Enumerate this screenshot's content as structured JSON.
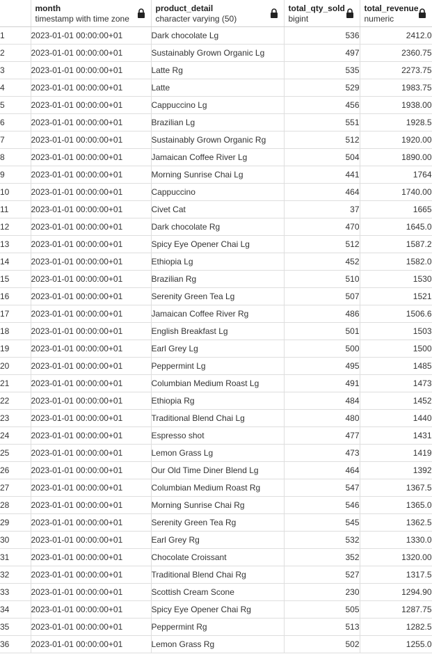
{
  "columns": [
    {
      "name": "",
      "type": ""
    },
    {
      "name": "month",
      "type": "timestamp with time zone"
    },
    {
      "name": "product_detail",
      "type": "character varying (50)"
    },
    {
      "name": "total_qty_sold",
      "type": "bigint"
    },
    {
      "name": "total_revenue",
      "type": "numeric"
    }
  ],
  "icons": {
    "column_lock": "lock-icon"
  },
  "rows": [
    {
      "n": "1",
      "month": "2023-01-01 00:00:00+01",
      "product": "Dark chocolate Lg",
      "qty": "536",
      "revenue": "2412.0"
    },
    {
      "n": "2",
      "month": "2023-01-01 00:00:00+01",
      "product": "Sustainably Grown Organic Lg",
      "qty": "497",
      "revenue": "2360.75"
    },
    {
      "n": "3",
      "month": "2023-01-01 00:00:00+01",
      "product": "Latte Rg",
      "qty": "535",
      "revenue": "2273.75"
    },
    {
      "n": "4",
      "month": "2023-01-01 00:00:00+01",
      "product": "Latte",
      "qty": "529",
      "revenue": "1983.75"
    },
    {
      "n": "5",
      "month": "2023-01-01 00:00:00+01",
      "product": "Cappuccino Lg",
      "qty": "456",
      "revenue": "1938.00"
    },
    {
      "n": "6",
      "month": "2023-01-01 00:00:00+01",
      "product": "Brazilian Lg",
      "qty": "551",
      "revenue": "1928.5"
    },
    {
      "n": "7",
      "month": "2023-01-01 00:00:00+01",
      "product": "Sustainably Grown Organic Rg",
      "qty": "512",
      "revenue": "1920.00"
    },
    {
      "n": "8",
      "month": "2023-01-01 00:00:00+01",
      "product": "Jamaican Coffee River Lg",
      "qty": "504",
      "revenue": "1890.00"
    },
    {
      "n": "9",
      "month": "2023-01-01 00:00:00+01",
      "product": "Morning Sunrise Chai Lg",
      "qty": "441",
      "revenue": "1764"
    },
    {
      "n": "10",
      "month": "2023-01-01 00:00:00+01",
      "product": "Cappuccino",
      "qty": "464",
      "revenue": "1740.00"
    },
    {
      "n": "11",
      "month": "2023-01-01 00:00:00+01",
      "product": "Civet Cat",
      "qty": "37",
      "revenue": "1665"
    },
    {
      "n": "12",
      "month": "2023-01-01 00:00:00+01",
      "product": "Dark chocolate Rg",
      "qty": "470",
      "revenue": "1645.0"
    },
    {
      "n": "13",
      "month": "2023-01-01 00:00:00+01",
      "product": "Spicy Eye Opener Chai Lg",
      "qty": "512",
      "revenue": "1587.2"
    },
    {
      "n": "14",
      "month": "2023-01-01 00:00:00+01",
      "product": "Ethiopia Lg",
      "qty": "452",
      "revenue": "1582.0"
    },
    {
      "n": "15",
      "month": "2023-01-01 00:00:00+01",
      "product": "Brazilian Rg",
      "qty": "510",
      "revenue": "1530"
    },
    {
      "n": "16",
      "month": "2023-01-01 00:00:00+01",
      "product": "Serenity Green Tea Lg",
      "qty": "507",
      "revenue": "1521"
    },
    {
      "n": "17",
      "month": "2023-01-01 00:00:00+01",
      "product": "Jamaican Coffee River Rg",
      "qty": "486",
      "revenue": "1506.6"
    },
    {
      "n": "18",
      "month": "2023-01-01 00:00:00+01",
      "product": "English Breakfast Lg",
      "qty": "501",
      "revenue": "1503"
    },
    {
      "n": "19",
      "month": "2023-01-01 00:00:00+01",
      "product": "Earl Grey Lg",
      "qty": "500",
      "revenue": "1500"
    },
    {
      "n": "20",
      "month": "2023-01-01 00:00:00+01",
      "product": "Peppermint Lg",
      "qty": "495",
      "revenue": "1485"
    },
    {
      "n": "21",
      "month": "2023-01-01 00:00:00+01",
      "product": "Columbian Medium Roast Lg",
      "qty": "491",
      "revenue": "1473"
    },
    {
      "n": "22",
      "month": "2023-01-01 00:00:00+01",
      "product": "Ethiopia Rg",
      "qty": "484",
      "revenue": "1452"
    },
    {
      "n": "23",
      "month": "2023-01-01 00:00:00+01",
      "product": "Traditional Blend Chai Lg",
      "qty": "480",
      "revenue": "1440"
    },
    {
      "n": "24",
      "month": "2023-01-01 00:00:00+01",
      "product": "Espresso shot",
      "qty": "477",
      "revenue": "1431"
    },
    {
      "n": "25",
      "month": "2023-01-01 00:00:00+01",
      "product": "Lemon Grass Lg",
      "qty": "473",
      "revenue": "1419"
    },
    {
      "n": "26",
      "month": "2023-01-01 00:00:00+01",
      "product": "Our Old Time Diner Blend Lg",
      "qty": "464",
      "revenue": "1392"
    },
    {
      "n": "27",
      "month": "2023-01-01 00:00:00+01",
      "product": "Columbian Medium Roast Rg",
      "qty": "547",
      "revenue": "1367.5"
    },
    {
      "n": "28",
      "month": "2023-01-01 00:00:00+01",
      "product": "Morning Sunrise Chai Rg",
      "qty": "546",
      "revenue": "1365.0"
    },
    {
      "n": "29",
      "month": "2023-01-01 00:00:00+01",
      "product": "Serenity Green Tea Rg",
      "qty": "545",
      "revenue": "1362.5"
    },
    {
      "n": "30",
      "month": "2023-01-01 00:00:00+01",
      "product": "Earl Grey Rg",
      "qty": "532",
      "revenue": "1330.0"
    },
    {
      "n": "31",
      "month": "2023-01-01 00:00:00+01",
      "product": "Chocolate Croissant",
      "qty": "352",
      "revenue": "1320.00"
    },
    {
      "n": "32",
      "month": "2023-01-01 00:00:00+01",
      "product": "Traditional Blend Chai Rg",
      "qty": "527",
      "revenue": "1317.5"
    },
    {
      "n": "33",
      "month": "2023-01-01 00:00:00+01",
      "product": "Scottish Cream Scone",
      "qty": "230",
      "revenue": "1294.90"
    },
    {
      "n": "34",
      "month": "2023-01-01 00:00:00+01",
      "product": "Spicy Eye Opener Chai Rg",
      "qty": "505",
      "revenue": "1287.75"
    },
    {
      "n": "35",
      "month": "2023-01-01 00:00:00+01",
      "product": "Peppermint Rg",
      "qty": "513",
      "revenue": "1282.5"
    },
    {
      "n": "36",
      "month": "2023-01-01 00:00:00+01",
      "product": "Lemon Grass Rg",
      "qty": "502",
      "revenue": "1255.0"
    }
  ]
}
